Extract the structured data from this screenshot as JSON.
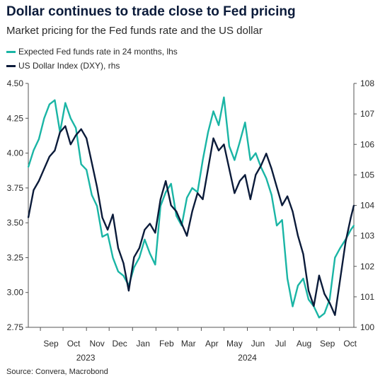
{
  "header": {
    "title": "Dollar continues to trade close to Fed pricing",
    "subtitle": "Market pricing for the Fed funds rate and the US dollar"
  },
  "source": "Source: Convera, Macrobond",
  "colors": {
    "fed": "#1ab5a5",
    "dxy": "#0b1b3a",
    "axis": "#555555"
  },
  "chart_data": {
    "type": "line",
    "title": "Dollar continues to trade close to Fed pricing",
    "subtitle": "Market pricing for the Fed funds rate and the US dollar",
    "legend_position": "top-left",
    "grid": false,
    "x_range": [
      "2023-08-16",
      "2024-10-20"
    ],
    "x_ticks": [
      {
        "label": "Sep",
        "date": "2023-09-15"
      },
      {
        "label": "Oct",
        "date": "2023-10-15"
      },
      {
        "label": "Nov",
        "date": "2023-11-15"
      },
      {
        "label": "Dec",
        "date": "2023-12-15"
      },
      {
        "label": "Jan",
        "date": "2024-01-15"
      },
      {
        "label": "Feb",
        "date": "2024-02-15"
      },
      {
        "label": "Mar",
        "date": "2024-03-15"
      },
      {
        "label": "Apr",
        "date": "2024-04-15"
      },
      {
        "label": "May",
        "date": "2024-05-15"
      },
      {
        "label": "Jun",
        "date": "2024-06-15"
      },
      {
        "label": "Jul",
        "date": "2024-07-15"
      },
      {
        "label": "Aug",
        "date": "2024-08-15"
      },
      {
        "label": "Sep",
        "date": "2024-09-15"
      },
      {
        "label": "Oct",
        "date": "2024-10-15"
      }
    ],
    "year_labels": [
      {
        "label": "2023",
        "date": "2023-10-31"
      },
      {
        "label": "2024",
        "date": "2024-06-01"
      }
    ],
    "y_left": {
      "ylim": [
        2.75,
        4.5
      ],
      "ticks": [
        "2.75",
        "3.00",
        "3.25",
        "3.50",
        "3.75",
        "4.00",
        "4.25",
        "4.50"
      ]
    },
    "y_right": {
      "ylim": [
        100,
        108
      ],
      "ticks": [
        "100",
        "101",
        "102",
        "103",
        "104",
        "105",
        "106",
        "107",
        "108"
      ]
    },
    "series": [
      {
        "name": "Expected Fed funds rate in 24 months, lhs",
        "axis": "left",
        "color": "#1ab5a5",
        "x": [
          "2023-08-16",
          "2023-08-23",
          "2023-08-30",
          "2023-09-06",
          "2023-09-13",
          "2023-09-20",
          "2023-09-27",
          "2023-10-04",
          "2023-10-11",
          "2023-10-18",
          "2023-10-25",
          "2023-11-01",
          "2023-11-08",
          "2023-11-15",
          "2023-11-22",
          "2023-11-29",
          "2023-12-06",
          "2023-12-13",
          "2023-12-20",
          "2023-12-27",
          "2024-01-03",
          "2024-01-10",
          "2024-01-17",
          "2024-01-24",
          "2024-01-31",
          "2024-02-07",
          "2024-02-14",
          "2024-02-21",
          "2024-02-28",
          "2024-03-06",
          "2024-03-13",
          "2024-03-20",
          "2024-03-27",
          "2024-04-03",
          "2024-04-10",
          "2024-04-17",
          "2024-04-24",
          "2024-05-01",
          "2024-05-08",
          "2024-05-15",
          "2024-05-22",
          "2024-05-29",
          "2024-06-05",
          "2024-06-12",
          "2024-06-19",
          "2024-06-26",
          "2024-07-03",
          "2024-07-10",
          "2024-07-17",
          "2024-07-24",
          "2024-07-31",
          "2024-08-07",
          "2024-08-14",
          "2024-08-21",
          "2024-08-28",
          "2024-09-04",
          "2024-09-11",
          "2024-09-18",
          "2024-09-25",
          "2024-10-02",
          "2024-10-09",
          "2024-10-16",
          "2024-10-20"
        ],
        "values": [
          3.9,
          4.02,
          4.1,
          4.25,
          4.35,
          4.38,
          4.15,
          4.36,
          4.25,
          4.18,
          3.92,
          3.88,
          3.7,
          3.62,
          3.4,
          3.42,
          3.25,
          3.15,
          3.12,
          3.05,
          3.18,
          3.25,
          3.38,
          3.28,
          3.2,
          3.62,
          3.72,
          3.78,
          3.55,
          3.48,
          3.68,
          3.75,
          3.72,
          3.95,
          4.15,
          4.3,
          4.2,
          4.4,
          4.05,
          3.95,
          4.08,
          4.22,
          3.95,
          4.0,
          3.9,
          3.82,
          3.7,
          3.48,
          3.52,
          3.1,
          2.9,
          3.05,
          3.1,
          2.95,
          2.9,
          2.82,
          2.85,
          2.95,
          3.25,
          3.32,
          3.38,
          3.45,
          3.48
        ]
      },
      {
        "name": "US Dollar Index (DXY), rhs",
        "axis": "right",
        "color": "#0b1b3a",
        "x": [
          "2023-08-16",
          "2023-08-23",
          "2023-08-30",
          "2023-09-06",
          "2023-09-13",
          "2023-09-20",
          "2023-09-27",
          "2023-10-04",
          "2023-10-11",
          "2023-10-18",
          "2023-10-25",
          "2023-11-01",
          "2023-11-08",
          "2023-11-15",
          "2023-11-22",
          "2023-11-29",
          "2023-12-06",
          "2023-12-13",
          "2023-12-20",
          "2023-12-27",
          "2024-01-03",
          "2024-01-10",
          "2024-01-17",
          "2024-01-24",
          "2024-01-31",
          "2024-02-07",
          "2024-02-14",
          "2024-02-21",
          "2024-02-28",
          "2024-03-06",
          "2024-03-13",
          "2024-03-20",
          "2024-03-27",
          "2024-04-03",
          "2024-04-10",
          "2024-04-17",
          "2024-04-24",
          "2024-05-01",
          "2024-05-08",
          "2024-05-15",
          "2024-05-22",
          "2024-05-29",
          "2024-06-05",
          "2024-06-12",
          "2024-06-19",
          "2024-06-26",
          "2024-07-03",
          "2024-07-10",
          "2024-07-17",
          "2024-07-24",
          "2024-07-31",
          "2024-08-07",
          "2024-08-14",
          "2024-08-21",
          "2024-08-28",
          "2024-09-04",
          "2024-09-11",
          "2024-09-18",
          "2024-09-25",
          "2024-10-02",
          "2024-10-09",
          "2024-10-16",
          "2024-10-20"
        ],
        "values": [
          103.6,
          104.5,
          104.8,
          105.2,
          105.6,
          105.8,
          106.4,
          106.6,
          106.0,
          106.3,
          106.5,
          106.2,
          105.4,
          104.6,
          103.6,
          103.2,
          103.7,
          102.6,
          102.1,
          101.2,
          102.3,
          102.6,
          103.2,
          103.4,
          103.1,
          104.2,
          104.8,
          104.0,
          103.8,
          103.4,
          103.0,
          103.8,
          104.4,
          104.2,
          105.2,
          106.2,
          105.8,
          106.0,
          105.2,
          104.4,
          104.8,
          105.0,
          104.2,
          105.0,
          105.3,
          105.7,
          105.2,
          104.6,
          104.0,
          104.3,
          103.8,
          103.0,
          102.4,
          101.2,
          100.7,
          101.7,
          101.1,
          100.8,
          100.4,
          101.6,
          102.8,
          103.6,
          104.0
        ]
      }
    ]
  }
}
